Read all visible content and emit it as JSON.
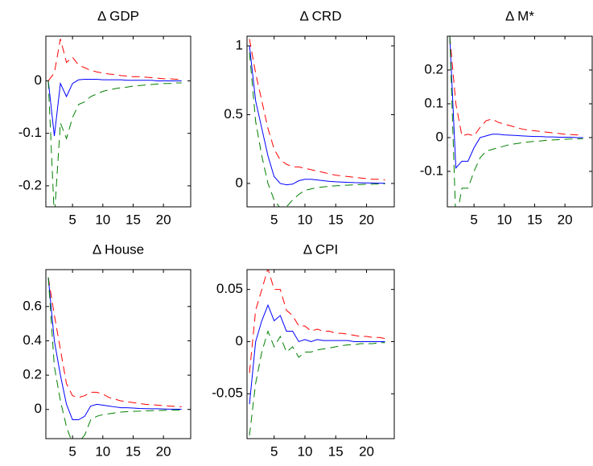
{
  "chart_data": [
    {
      "type": "line",
      "title": "Δ GDP",
      "x": [
        1,
        2,
        3,
        4,
        5,
        6,
        7,
        8,
        9,
        10,
        11,
        12,
        13,
        14,
        15,
        16,
        17,
        18,
        19,
        20,
        21,
        22,
        23
      ],
      "xlim": [
        0.6,
        24.5
      ],
      "xticks": [
        5,
        10,
        15,
        20
      ],
      "ylim": [
        -0.24,
        0.085
      ],
      "yticks": [
        -0.2,
        -0.1,
        0
      ],
      "series": [
        {
          "color": "#ff0000",
          "dashed": true,
          "values": [
            0.0,
            0.015,
            0.08,
            0.035,
            0.045,
            0.03,
            0.025,
            0.02,
            0.017,
            0.015,
            0.013,
            0.012,
            0.01,
            0.009,
            0.008,
            0.008,
            0.007,
            0.006,
            0.005,
            0.004,
            0.004,
            0.003,
            0.003
          ]
        },
        {
          "color": "#0000ff",
          "dashed": false,
          "values": [
            0,
            -0.105,
            -0.005,
            -0.03,
            -0.005,
            0.002,
            0.003,
            0.003,
            0.003,
            0.002,
            0.002,
            0.002,
            0.002,
            0.001,
            0.001,
            0.001,
            0.001,
            0.001,
            0,
            0,
            0,
            0,
            0
          ]
        },
        {
          "color": "#008000",
          "dashed": true,
          "values": [
            0,
            -0.26,
            -0.08,
            -0.11,
            -0.07,
            -0.045,
            -0.04,
            -0.03,
            -0.025,
            -0.02,
            -0.017,
            -0.015,
            -0.013,
            -0.012,
            -0.01,
            -0.009,
            -0.008,
            -0.007,
            -0.006,
            -0.005,
            -0.005,
            -0.004,
            -0.004
          ]
        }
      ]
    },
    {
      "type": "line",
      "title": "Δ CRD",
      "x": [
        1,
        2,
        3,
        4,
        5,
        6,
        7,
        8,
        9,
        10,
        11,
        12,
        13,
        14,
        15,
        16,
        17,
        18,
        19,
        20,
        21,
        22,
        23
      ],
      "xlim": [
        0.6,
        24.5
      ],
      "xticks": [
        5,
        10,
        15,
        20
      ],
      "ylim": [
        -0.17,
        1.07
      ],
      "yticks": [
        0,
        0.5,
        1
      ],
      "series": [
        {
          "color": "#ff0000",
          "dashed": true,
          "values": [
            1.05,
            0.8,
            0.6,
            0.4,
            0.25,
            0.17,
            0.14,
            0.12,
            0.12,
            0.11,
            0.1,
            0.09,
            0.08,
            0.07,
            0.06,
            0.055,
            0.05,
            0.045,
            0.04,
            0.035,
            0.03,
            0.03,
            0.025
          ]
        },
        {
          "color": "#0000ff",
          "dashed": false,
          "values": [
            1.0,
            0.6,
            0.4,
            0.2,
            0.05,
            0.0,
            -0.01,
            -0.005,
            0.02,
            0.03,
            0.03,
            0.025,
            0.02,
            0.015,
            0.012,
            0.01,
            0.008,
            0.006,
            0.005,
            0.004,
            0.003,
            0.002,
            0.002
          ]
        },
        {
          "color": "#008000",
          "dashed": true,
          "values": [
            0.95,
            0.45,
            0.2,
            0.0,
            -0.12,
            -0.18,
            -0.17,
            -0.12,
            -0.08,
            -0.05,
            -0.04,
            -0.03,
            -0.025,
            -0.02,
            -0.017,
            -0.015,
            -0.012,
            -0.01,
            -0.008,
            -0.006,
            -0.005,
            -0.004,
            -0.003
          ]
        }
      ]
    },
    {
      "type": "line",
      "title": "Δ M*",
      "x": [
        1,
        2,
        3,
        4,
        5,
        6,
        7,
        8,
        9,
        10,
        11,
        12,
        13,
        14,
        15,
        16,
        17,
        18,
        19,
        20,
        21,
        22,
        23
      ],
      "xlim": [
        0.6,
        24.5
      ],
      "xticks": [
        5,
        10,
        15,
        20
      ],
      "ylim": [
        -0.205,
        0.3
      ],
      "yticks": [
        -0.1,
        0,
        0.1,
        0.2
      ],
      "series": [
        {
          "color": "#ff0000",
          "dashed": true,
          "values": [
            0.3,
            0.1,
            0.005,
            0.01,
            0.005,
            0.03,
            0.05,
            0.055,
            0.045,
            0.04,
            0.035,
            0.03,
            0.025,
            0.022,
            0.02,
            0.018,
            0.016,
            0.014,
            0.012,
            0.01,
            0.009,
            0.008,
            0.007
          ]
        },
        {
          "color": "#0000ff",
          "dashed": false,
          "values": [
            0.3,
            -0.09,
            -0.07,
            -0.07,
            -0.03,
            0.0,
            0.005,
            0.01,
            0.01,
            0.008,
            0.007,
            0.006,
            0.005,
            0.004,
            0.003,
            0.003,
            0.002,
            0.002,
            0.001,
            0.001,
            0.001,
            0,
            0
          ]
        },
        {
          "color": "#008000",
          "dashed": true,
          "values": [
            0.3,
            -0.25,
            -0.15,
            -0.15,
            -0.1,
            -0.06,
            -0.04,
            -0.035,
            -0.03,
            -0.025,
            -0.02,
            -0.018,
            -0.015,
            -0.013,
            -0.011,
            -0.01,
            -0.008,
            -0.007,
            -0.006,
            -0.005,
            -0.004,
            -0.004,
            -0.003
          ]
        }
      ]
    },
    {
      "type": "line",
      "title": "Δ House",
      "x": [
        1,
        2,
        3,
        4,
        5,
        6,
        7,
        8,
        9,
        10,
        11,
        12,
        13,
        14,
        15,
        16,
        17,
        18,
        19,
        20,
        21,
        22,
        23
      ],
      "xlim": [
        0.6,
        24.5
      ],
      "xticks": [
        5,
        10,
        15,
        20
      ],
      "ylim": [
        -0.17,
        0.815
      ],
      "yticks": [
        0,
        0.2,
        0.4,
        0.6
      ],
      "series": [
        {
          "color": "#ff0000",
          "dashed": true,
          "values": [
            0.77,
            0.55,
            0.35,
            0.15,
            0.08,
            0.07,
            0.08,
            0.1,
            0.1,
            0.09,
            0.07,
            0.06,
            0.05,
            0.045,
            0.04,
            0.035,
            0.03,
            0.028,
            0.025,
            0.022,
            0.02,
            0.018,
            0.016
          ]
        },
        {
          "color": "#0000ff",
          "dashed": false,
          "values": [
            0.77,
            0.4,
            0.2,
            0.03,
            -0.06,
            -0.06,
            -0.04,
            0.02,
            0.03,
            0.025,
            0.02,
            0.015,
            0.01,
            0.01,
            0.008,
            0.006,
            0.005,
            0.004,
            0.004,
            0.003,
            0.002,
            0.002,
            0.001
          ]
        },
        {
          "color": "#008000",
          "dashed": true,
          "values": [
            0.77,
            0.25,
            0.05,
            -0.1,
            -0.2,
            -0.19,
            -0.15,
            -0.06,
            -0.04,
            -0.03,
            -0.025,
            -0.02,
            -0.015,
            -0.013,
            -0.011,
            -0.01,
            -0.008,
            -0.007,
            -0.006,
            -0.005,
            -0.004,
            -0.004,
            -0.003
          ]
        }
      ]
    },
    {
      "type": "line",
      "title": "Δ CPI",
      "x": [
        1,
        2,
        3,
        4,
        5,
        6,
        7,
        8,
        9,
        10,
        11,
        12,
        13,
        14,
        15,
        16,
        17,
        18,
        19,
        20,
        21,
        22,
        23
      ],
      "xlim": [
        0.6,
        24.5
      ],
      "xticks": [
        5,
        10,
        15,
        20
      ],
      "ylim": [
        -0.093,
        0.069
      ],
      "yticks": [
        -0.05,
        0,
        0.05
      ],
      "series": [
        {
          "color": "#ff0000",
          "dashed": true,
          "values": [
            -0.03,
            0.03,
            0.05,
            0.07,
            0.05,
            0.05,
            0.03,
            0.025,
            0.015,
            0.015,
            0.01,
            0.012,
            0.01,
            0.01,
            0.008,
            0.008,
            0.007,
            0.006,
            0.005,
            0.005,
            0.004,
            0.004,
            0.003
          ]
        },
        {
          "color": "#0000ff",
          "dashed": false,
          "values": [
            -0.06,
            0.0,
            0.02,
            0.035,
            0.02,
            0.025,
            0.01,
            0.01,
            0.0,
            0.002,
            0.0,
            0.002,
            0.001,
            0.001,
            0.001,
            0.001,
            0.001,
            0,
            0,
            0,
            0,
            0,
            0
          ]
        },
        {
          "color": "#008000",
          "dashed": true,
          "values": [
            -0.09,
            -0.04,
            -0.01,
            0.01,
            -0.005,
            0.005,
            -0.01,
            -0.005,
            -0.015,
            -0.01,
            -0.01,
            -0.008,
            -0.007,
            -0.006,
            -0.005,
            -0.004,
            -0.003,
            -0.003,
            -0.002,
            -0.002,
            -0.002,
            -0.001,
            -0.001
          ]
        }
      ]
    }
  ]
}
